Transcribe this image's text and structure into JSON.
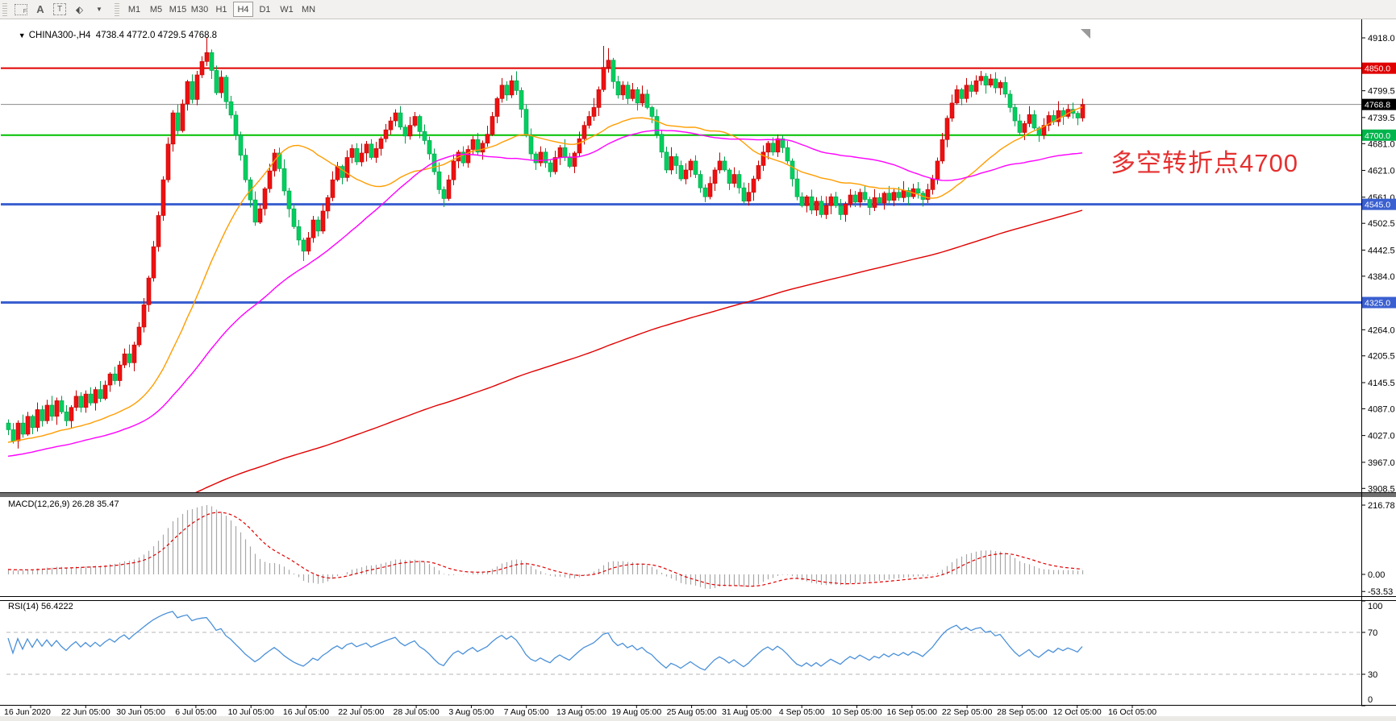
{
  "toolbar": {
    "tools": [
      {
        "id": "chart-grid-f-icon",
        "label": "F"
      },
      {
        "id": "font-tool-icon",
        "label": "A"
      },
      {
        "id": "text-label-tool-icon",
        "label": "T"
      },
      {
        "id": "cycle-arrows-icon",
        "label": "⬖"
      }
    ],
    "timeframes": [
      "M1",
      "M5",
      "M15",
      "M30",
      "H1",
      "H4",
      "D1",
      "W1",
      "MN"
    ],
    "active_timeframe": "H4"
  },
  "chart_header": {
    "collapse_icon": "▼",
    "symbol": "CHINA300-,H4",
    "ohlc": "4738.4 4772.0 4729.5 4768.8",
    "open": "4738.4",
    "high": "4772.0",
    "low": "4729.5",
    "close": "4768.8"
  },
  "annotation": {
    "text": "多空转折点4700",
    "color": "#e53030"
  },
  "price_axis": {
    "ticks": [
      "4918.0",
      "4799.5",
      "4739.5",
      "4681.0",
      "4621.0",
      "4561.0",
      "4502.5",
      "4442.5",
      "4384.0",
      "4264.0",
      "4205.5",
      "4145.5",
      "4087.0",
      "4027.0",
      "3967.0",
      "3908.5"
    ],
    "line_labels": [
      {
        "label": "4850.0",
        "price": 4850.0,
        "color": "#e00000"
      },
      {
        "label": "4768.8",
        "price": 4768.8,
        "color": "#000000"
      },
      {
        "label": "4700.0",
        "price": 4700.0,
        "color": "#00b44c"
      },
      {
        "label": "4545.0",
        "price": 4545.0,
        "color": "#3a5fd0"
      },
      {
        "label": "4325.0",
        "price": 4325.0,
        "color": "#3a5fd0"
      }
    ]
  },
  "indicators": {
    "macd": {
      "label": "MACD(12,26,9) 26.28 35.47",
      "value": "26.28",
      "signal": "35.47",
      "axis": [
        "216.78",
        "0.00",
        "-53.53"
      ],
      "axis_values": [
        216.78,
        0.0,
        -53.53
      ],
      "hist_color": "#a8a8a8",
      "signal_color": "#e00000"
    },
    "rsi": {
      "label": "RSI(14) 56.4222",
      "value": "56.4222",
      "axis": [
        "100",
        "70",
        "30",
        "0"
      ],
      "axis_values": [
        100,
        70,
        30,
        0
      ],
      "levels": [
        70,
        30
      ],
      "line_color": "#4a90d9"
    }
  },
  "time_axis": {
    "labels": [
      "16 Jun 2020",
      "22 Jun 05:00",
      "30 Jun 05:00",
      "6 Jul 05:00",
      "10 Jul 05:00",
      "16 Jul 05:00",
      "22 Jul 05:00",
      "28 Jul 05:00",
      "3 Aug 05:00",
      "7 Aug 05:00",
      "13 Aug 05:00",
      "19 Aug 05:00",
      "25 Aug 05:00",
      "31 Aug 05:00",
      "4 Sep 05:00",
      "10 Sep 05:00",
      "16 Sep 05:00",
      "22 Sep 05:00",
      "28 Sep 05:00",
      "12 Oct 05:00",
      "16 Oct 05:00"
    ]
  },
  "chart_data": {
    "type": "candlestick",
    "symbol": "CHINA300-",
    "timeframe": "H4",
    "title": "CHINA300-,H4",
    "price_range": [
      3908.5,
      4918.0
    ],
    "last_price": 4768.8,
    "up_color": "#ee1111",
    "down_color": "#00cf5f",
    "first_open": 4055,
    "closes": [
      4040,
      4015,
      4055,
      4030,
      4070,
      4045,
      4085,
      4060,
      4095,
      4070,
      4105,
      4080,
      4060,
      4090,
      4115,
      4090,
      4120,
      4100,
      4130,
      4110,
      4140,
      4165,
      4150,
      4185,
      4210,
      4190,
      4230,
      4270,
      4320,
      4380,
      4450,
      4520,
      4600,
      4680,
      4750,
      4710,
      4770,
      4820,
      4780,
      4835,
      4865,
      4885,
      4845,
      4795,
      4830,
      4775,
      4745,
      4700,
      4655,
      4600,
      4555,
      4505,
      4535,
      4580,
      4620,
      4660,
      4625,
      4575,
      4535,
      4495,
      4465,
      4440,
      4470,
      4510,
      4485,
      4530,
      4560,
      4600,
      4630,
      4605,
      4650,
      4670,
      4640,
      4660,
      4680,
      4650,
      4670,
      4692,
      4712,
      4732,
      4750,
      4718,
      4698,
      4722,
      4742,
      4708,
      4688,
      4658,
      4618,
      4578,
      4558,
      4600,
      4642,
      4662,
      4638,
      4668,
      4690,
      4662,
      4682,
      4702,
      4742,
      4782,
      4812,
      4790,
      4822,
      4800,
      4758,
      4700,
      4658,
      4638,
      4662,
      4638,
      4618,
      4650,
      4672,
      4650,
      4630,
      4660,
      4692,
      4722,
      4742,
      4762,
      4802,
      4852,
      4868,
      4820,
      4790,
      4812,
      4782,
      4802,
      4772,
      4792,
      4762,
      4742,
      4702,
      4662,
      4622,
      4652,
      4632,
      4602,
      4622,
      4642,
      4612,
      4582,
      4562,
      4592,
      4622,
      4642,
      4622,
      4592,
      4612,
      4582,
      4552,
      4572,
      4602,
      4632,
      4662,
      4682,
      4662,
      4692,
      4672,
      4642,
      4602,
      4562,
      4542,
      4562,
      4532,
      4552,
      4522,
      4542,
      4562,
      4542,
      4522,
      4546,
      4566,
      4550,
      4572,
      4556,
      4538,
      4560,
      4548,
      4570,
      4554,
      4572,
      4560,
      4576,
      4562,
      4580,
      4570,
      4556,
      4578,
      4602,
      4642,
      4690,
      4738,
      4772,
      4802,
      4782,
      4812,
      4798,
      4822,
      4832,
      4812,
      4826,
      4806,
      4818,
      4792,
      4762,
      4732,
      4706,
      4726,
      4746,
      4716,
      4700,
      4722,
      4744,
      4730,
      4755,
      4742,
      4758,
      4749,
      4738.4,
      4768.8
    ],
    "wick_hi_cycle": [
      8,
      15,
      6,
      19,
      10,
      4,
      16,
      9,
      12,
      21,
      7,
      11,
      15,
      5,
      13,
      9
    ],
    "wick_lo_cycle": [
      12,
      6,
      17,
      8,
      4,
      15,
      9,
      13,
      7,
      10,
      19,
      5,
      12,
      16,
      8,
      11
    ],
    "wick_overrides": {
      "hi": {
        "41": 33,
        "123": 48,
        "124": 27,
        "201": 12
      },
      "lo": {
        "61": 22
      }
    },
    "moving_averages": [
      {
        "name": "fast-ma",
        "period": 30,
        "color": "#ff9d00"
      },
      {
        "name": "mid-ma",
        "period": 62,
        "color": "#ff00ff"
      },
      {
        "name": "slow-ma",
        "period": 250,
        "color": "#e00000"
      }
    ],
    "hlines": [
      {
        "price": 4850,
        "color": "#e00000",
        "width": 2
      },
      {
        "price": 4700,
        "color": "#00c000",
        "width": 2
      },
      {
        "price": 4545,
        "color": "#3a5fd0",
        "width": 3
      },
      {
        "price": 4325,
        "color": "#3a5fd0",
        "width": 3
      }
    ],
    "current_price_line": {
      "price": 4768.8,
      "color": "#8a8a8a"
    }
  }
}
